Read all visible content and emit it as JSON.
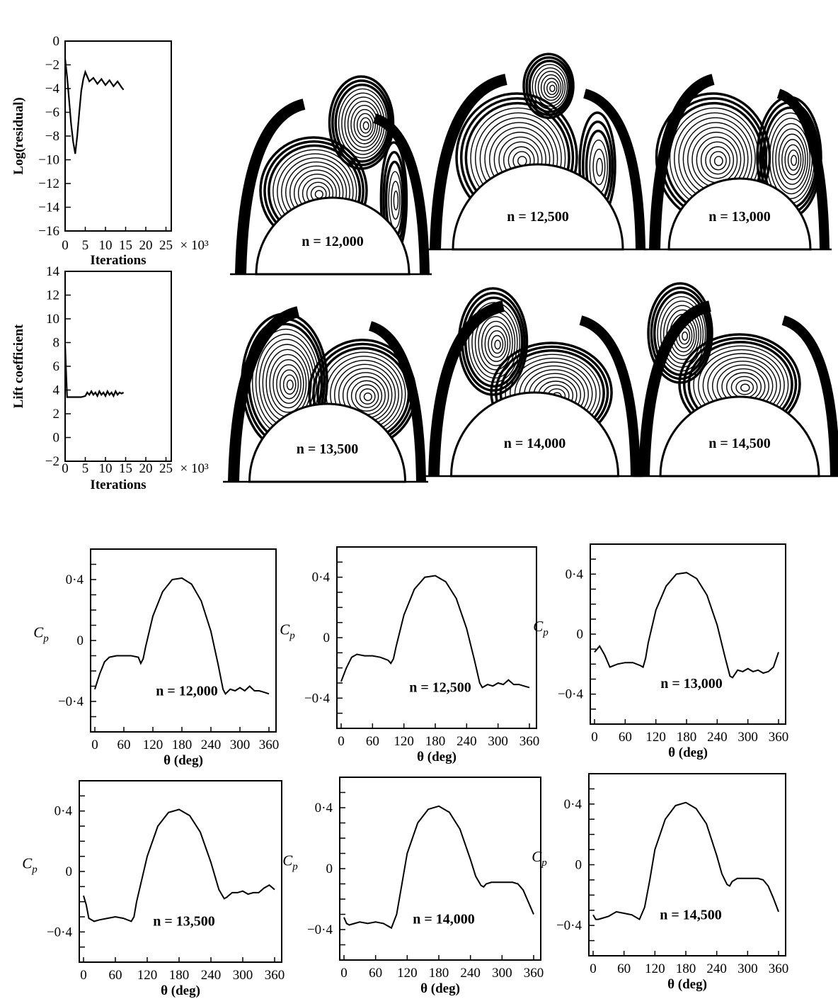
{
  "history_plots": [
    {
      "id": "residual",
      "ylabel": "Log(residual)",
      "xlabel": "Iterations",
      "x_scale_label": "× 10³",
      "x_ticks": [
        "0",
        "5",
        "10",
        "15",
        "20",
        "25"
      ],
      "y_ticks": [
        "0",
        "−2",
        "−4",
        "−6",
        "−8",
        "−10",
        "−12",
        "−14",
        "−16"
      ]
    },
    {
      "id": "lift",
      "ylabel": "Lift coefficient",
      "xlabel": "Iterations",
      "x_scale_label": "× 10³",
      "x_ticks": [
        "0",
        "5",
        "10",
        "15",
        "20",
        "25"
      ],
      "y_ticks": [
        "14",
        "12",
        "10",
        "8",
        "6",
        "4",
        "2",
        "0",
        "−2"
      ]
    }
  ],
  "contour_panels": [
    {
      "label": "n = 12,000"
    },
    {
      "label": "n = 12,500"
    },
    {
      "label": "n = 13,000"
    },
    {
      "label": "n = 13,500"
    },
    {
      "label": "n = 14,000"
    },
    {
      "label": "n = 14,500"
    }
  ],
  "cp_axis": {
    "xlabel": "θ (deg)",
    "ylabel": "C_p",
    "x_ticks": [
      "0",
      "60",
      "120",
      "180",
      "240",
      "300",
      "360"
    ],
    "y_ticks": [
      "0·4",
      "0",
      "−0·4"
    ]
  },
  "chart_data": [
    {
      "type": "line",
      "id": "residual-history",
      "xlabel": "Iterations",
      "ylabel": "Log(residual)",
      "xlim": [
        0,
        25
      ],
      "ylim": [
        -16,
        0
      ],
      "series": [
        {
          "x": [
            0,
            0.5,
            1,
            1.5,
            2,
            2.5,
            3,
            3.5,
            4,
            4.5,
            5,
            6,
            7,
            8,
            9,
            10,
            11,
            12,
            13,
            14,
            14.5
          ],
          "y": [
            -1.5,
            -3,
            -5,
            -7,
            -8.5,
            -9.5,
            -8,
            -6,
            -4.2,
            -3.2,
            -2.6,
            -3.4,
            -3.1,
            -3.6,
            -3.2,
            -3.7,
            -3.3,
            -3.8,
            -3.4,
            -3.9,
            -4.1
          ]
        }
      ]
    },
    {
      "type": "line",
      "id": "lift-history",
      "xlabel": "Iterations",
      "ylabel": "Lift coefficient",
      "xlim": [
        0,
        25
      ],
      "ylim": [
        -2,
        14
      ],
      "series": [
        {
          "x": [
            0,
            0.5,
            1,
            2,
            3,
            4,
            5,
            5.5,
            6,
            6.5,
            7,
            7.5,
            8,
            8.5,
            9,
            9.5,
            10,
            10.5,
            11,
            11.5,
            12,
            12.5,
            13,
            13.5,
            14,
            14.5
          ],
          "y": [
            7.8,
            3.4,
            3.4,
            3.4,
            3.4,
            3.4,
            3.5,
            3.8,
            3.6,
            3.9,
            3.6,
            3.8,
            3.5,
            3.9,
            3.6,
            3.8,
            3.5,
            3.9,
            3.6,
            3.8,
            3.5,
            3.9,
            3.6,
            3.8,
            3.7,
            3.8
          ]
        }
      ]
    },
    {
      "type": "line",
      "id": "cp-12000",
      "xlabel": "θ (deg)",
      "ylabel": "C_p",
      "xlim": [
        0,
        360
      ],
      "ylim": [
        -0.6,
        0.6
      ],
      "series": [
        {
          "x": [
            0,
            10,
            20,
            30,
            45,
            60,
            75,
            90,
            95,
            100,
            105,
            120,
            140,
            160,
            180,
            200,
            220,
            240,
            255,
            265,
            270,
            280,
            290,
            300,
            310,
            320,
            330,
            340,
            350,
            360
          ],
          "y": [
            -0.32,
            -0.22,
            -0.14,
            -0.11,
            -0.1,
            -0.1,
            -0.1,
            -0.11,
            -0.15,
            -0.12,
            -0.04,
            0.16,
            0.32,
            0.4,
            0.41,
            0.37,
            0.26,
            0.06,
            -0.16,
            -0.32,
            -0.35,
            -0.32,
            -0.33,
            -0.31,
            -0.33,
            -0.3,
            -0.33,
            -0.33,
            -0.34,
            -0.35
          ]
        }
      ]
    },
    {
      "type": "line",
      "id": "cp-12500",
      "xlabel": "θ (deg)",
      "ylabel": "C_p",
      "xlim": [
        0,
        360
      ],
      "ylim": [
        -0.6,
        0.6
      ],
      "series": [
        {
          "x": [
            0,
            10,
            20,
            30,
            45,
            60,
            75,
            90,
            95,
            100,
            105,
            120,
            140,
            160,
            180,
            200,
            220,
            240,
            255,
            265,
            270,
            280,
            290,
            300,
            310,
            320,
            330,
            340,
            350,
            360
          ],
          "y": [
            -0.29,
            -0.2,
            -0.13,
            -0.11,
            -0.12,
            -0.12,
            -0.13,
            -0.15,
            -0.17,
            -0.14,
            -0.06,
            0.15,
            0.32,
            0.4,
            0.41,
            0.37,
            0.26,
            0.06,
            -0.15,
            -0.3,
            -0.33,
            -0.31,
            -0.32,
            -0.3,
            -0.31,
            -0.28,
            -0.31,
            -0.31,
            -0.32,
            -0.33
          ]
        }
      ]
    },
    {
      "type": "line",
      "id": "cp-13000",
      "xlabel": "θ (deg)",
      "ylabel": "C_p",
      "xlim": [
        0,
        360
      ],
      "ylim": [
        -0.6,
        0.6
      ],
      "series": [
        {
          "x": [
            0,
            5,
            10,
            20,
            30,
            45,
            60,
            75,
            90,
            95,
            100,
            105,
            120,
            140,
            160,
            180,
            200,
            220,
            240,
            255,
            265,
            270,
            280,
            290,
            300,
            310,
            320,
            330,
            340,
            350,
            360
          ],
          "y": [
            -0.12,
            -0.1,
            -0.08,
            -0.14,
            -0.22,
            -0.2,
            -0.19,
            -0.19,
            -0.21,
            -0.22,
            -0.16,
            -0.06,
            0.16,
            0.32,
            0.4,
            0.41,
            0.37,
            0.26,
            0.06,
            -0.15,
            -0.28,
            -0.29,
            -0.24,
            -0.25,
            -0.23,
            -0.25,
            -0.24,
            -0.26,
            -0.25,
            -0.22,
            -0.12
          ]
        }
      ]
    },
    {
      "type": "line",
      "id": "cp-13500",
      "xlabel": "θ (deg)",
      "ylabel": "C_p",
      "xlim": [
        0,
        360
      ],
      "ylim": [
        -0.6,
        0.6
      ],
      "series": [
        {
          "x": [
            0,
            5,
            10,
            20,
            30,
            45,
            60,
            75,
            90,
            95,
            100,
            110,
            120,
            140,
            160,
            180,
            200,
            220,
            240,
            255,
            265,
            270,
            280,
            290,
            300,
            310,
            320,
            330,
            340,
            350,
            360
          ],
          "y": [
            -0.16,
            -0.22,
            -0.31,
            -0.33,
            -0.32,
            -0.31,
            -0.3,
            -0.31,
            -0.33,
            -0.3,
            -0.2,
            -0.05,
            0.1,
            0.3,
            0.39,
            0.41,
            0.37,
            0.26,
            0.06,
            -0.12,
            -0.18,
            -0.17,
            -0.14,
            -0.14,
            -0.13,
            -0.15,
            -0.14,
            -0.14,
            -0.11,
            -0.09,
            -0.12
          ]
        }
      ]
    },
    {
      "type": "line",
      "id": "cp-14000",
      "xlabel": "θ (deg)",
      "ylabel": "C_p",
      "xlim": [
        0,
        360
      ],
      "ylim": [
        -0.6,
        0.6
      ],
      "series": [
        {
          "x": [
            0,
            5,
            10,
            20,
            30,
            45,
            60,
            75,
            90,
            100,
            110,
            120,
            140,
            160,
            180,
            200,
            220,
            240,
            250,
            260,
            265,
            270,
            280,
            290,
            300,
            310,
            320,
            330,
            340,
            350,
            360
          ],
          "y": [
            -0.32,
            -0.36,
            -0.37,
            -0.36,
            -0.35,
            -0.36,
            -0.35,
            -0.36,
            -0.39,
            -0.3,
            -0.1,
            0.1,
            0.3,
            0.39,
            0.41,
            0.37,
            0.26,
            0.06,
            -0.05,
            -0.11,
            -0.12,
            -0.1,
            -0.09,
            -0.09,
            -0.09,
            -0.09,
            -0.09,
            -0.1,
            -0.14,
            -0.22,
            -0.3
          ]
        }
      ]
    },
    {
      "type": "line",
      "id": "cp-14500",
      "xlabel": "θ (deg)",
      "ylabel": "C_p",
      "xlim": [
        0,
        360
      ],
      "ylim": [
        -0.6,
        0.6
      ],
      "series": [
        {
          "x": [
            0,
            5,
            10,
            20,
            30,
            45,
            60,
            75,
            90,
            100,
            110,
            120,
            140,
            160,
            180,
            200,
            220,
            240,
            250,
            260,
            265,
            270,
            280,
            290,
            300,
            310,
            320,
            330,
            340,
            350,
            360
          ],
          "y": [
            -0.33,
            -0.36,
            -0.36,
            -0.35,
            -0.34,
            -0.31,
            -0.32,
            -0.33,
            -0.36,
            -0.28,
            -0.1,
            0.1,
            0.3,
            0.39,
            0.41,
            0.37,
            0.27,
            0.06,
            -0.06,
            -0.13,
            -0.14,
            -0.11,
            -0.09,
            -0.09,
            -0.09,
            -0.09,
            -0.09,
            -0.1,
            -0.14,
            -0.22,
            -0.31
          ]
        }
      ]
    }
  ]
}
